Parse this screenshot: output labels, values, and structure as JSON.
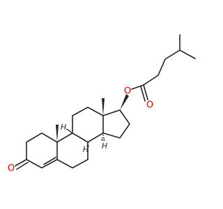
{
  "atoms": [
    "O",
    "O",
    "O",
    "H",
    "H",
    "H"
  ]
}
